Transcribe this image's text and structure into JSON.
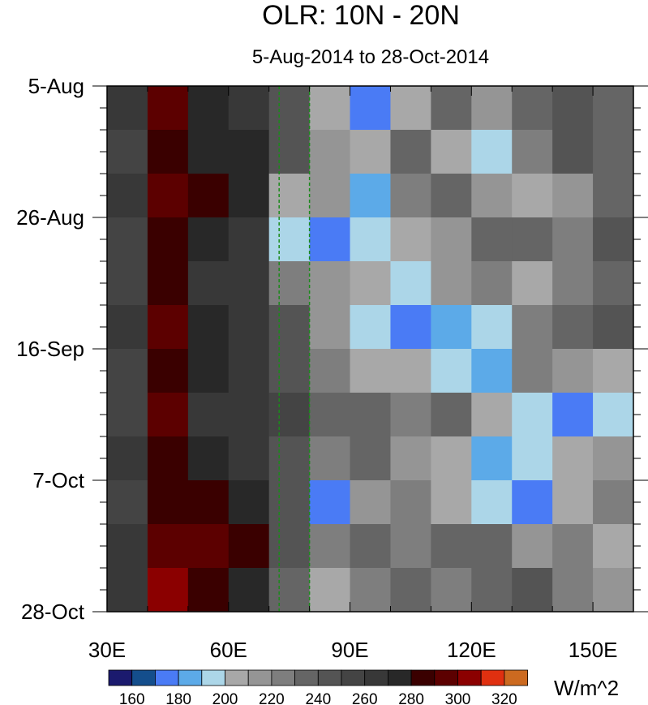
{
  "chart_data": {
    "type": "heatmap",
    "title": "OLR: 10N - 20N",
    "subtitle": "5-Aug-2014 to 28-Oct-2014",
    "xlabel": "",
    "ylabel": "",
    "xlim": [
      30,
      160
    ],
    "ylim_days": [
      0,
      84
    ],
    "x_ticks": [
      {
        "v": 30,
        "label": "30E"
      },
      {
        "v": 60,
        "label": "60E"
      },
      {
        "v": 90,
        "label": "90E"
      },
      {
        "v": 120,
        "label": "120E"
      },
      {
        "v": 150,
        "label": "150E"
      }
    ],
    "y_ticks": [
      {
        "d": 0,
        "label": "5-Aug"
      },
      {
        "d": 21,
        "label": "26-Aug"
      },
      {
        "d": 42,
        "label": "16-Sep"
      },
      {
        "d": 63,
        "label": "7-Oct"
      },
      {
        "d": 84,
        "label": "28-Oct"
      }
    ],
    "reference_lines_lon": [
      72.5,
      80
    ],
    "lon_centers": [
      35,
      45,
      55,
      65,
      75,
      85,
      95,
      105,
      115,
      125,
      135,
      145,
      155
    ],
    "row_days": 7,
    "values": [
      [
        260,
        290,
        270,
        265,
        240,
        200,
        170,
        200,
        230,
        210,
        230,
        240,
        230
      ],
      [
        250,
        285,
        275,
        270,
        240,
        210,
        200,
        230,
        200,
        190,
        220,
        240,
        230
      ],
      [
        260,
        290,
        280,
        270,
        200,
        210,
        180,
        220,
        230,
        210,
        200,
        210,
        230
      ],
      [
        255,
        285,
        270,
        265,
        190,
        175,
        190,
        200,
        210,
        230,
        230,
        220,
        240
      ],
      [
        250,
        280,
        265,
        260,
        220,
        210,
        200,
        190,
        210,
        220,
        200,
        220,
        230
      ],
      [
        260,
        295,
        275,
        265,
        240,
        210,
        190,
        170,
        180,
        190,
        220,
        230,
        240
      ],
      [
        250,
        285,
        270,
        260,
        240,
        220,
        200,
        200,
        190,
        180,
        220,
        210,
        200
      ],
      [
        255,
        290,
        265,
        260,
        250,
        230,
        230,
        220,
        230,
        200,
        190,
        175,
        190
      ],
      [
        260,
        280,
        270,
        265,
        245,
        220,
        230,
        210,
        200,
        180,
        190,
        200,
        210
      ],
      [
        255,
        285,
        280,
        270,
        240,
        175,
        210,
        220,
        200,
        190,
        170,
        200,
        220
      ],
      [
        260,
        295,
        290,
        280,
        240,
        220,
        230,
        220,
        230,
        230,
        210,
        220,
        200
      ],
      [
        265,
        300,
        285,
        270,
        230,
        200,
        220,
        230,
        220,
        230,
        240,
        220,
        210
      ]
    ],
    "colorbar": {
      "units": "W/m^2",
      "levels": [
        160,
        170,
        180,
        190,
        200,
        210,
        220,
        230,
        240,
        250,
        260,
        270,
        280,
        290,
        300,
        310,
        320
      ],
      "labels": [
        "160",
        "180",
        "200",
        "220",
        "240",
        "260",
        "280",
        "300",
        "320"
      ],
      "colors": [
        "#1b1a6e",
        "#144e8c",
        "#4a7bf5",
        "#5caae8",
        "#acd6e8",
        "#a8a8a8",
        "#959595",
        "#7e7e7e",
        "#656565",
        "#545454",
        "#444444",
        "#383838",
        "#282828",
        "#3a0000",
        "#5c0000",
        "#8b0000",
        "#e03010",
        "#cc6a20"
      ]
    }
  }
}
